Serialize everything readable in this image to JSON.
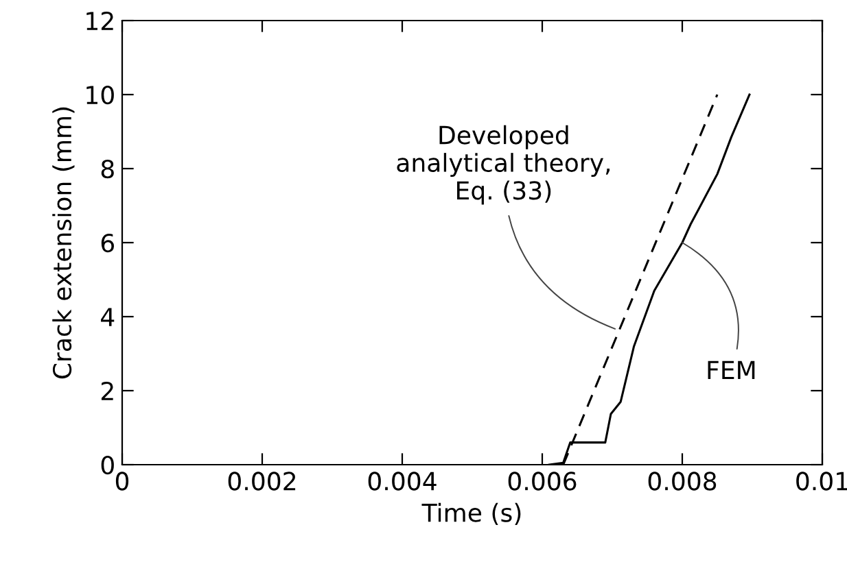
{
  "chart_data": {
    "type": "line",
    "xlabel": "Time (s)",
    "ylabel": "Crack extension (mm)",
    "xlim": [
      0,
      0.01
    ],
    "ylim": [
      0,
      12
    ],
    "xticks": [
      {
        "value": 0,
        "label": "0"
      },
      0.002,
      0.004,
      0.006,
      0.008,
      0.01
    ],
    "yticks": [
      0,
      2,
      4,
      6,
      8,
      10,
      12
    ],
    "grid": false,
    "legend": false,
    "series": [
      {
        "color": "#000000",
        "line_style": "dashed",
        "x": [
          0.0063,
          0.0085
        ],
        "values": [
          0,
          10
        ]
      },
      {
        "color": "#000000",
        "line_style": "solid",
        "x": [
          0.0061,
          0.0063,
          0.0064,
          0.0069,
          0.00698,
          0.00712,
          0.00731,
          0.0076,
          0.008,
          0.00812,
          0.0085,
          0.0087,
          0.00896
        ],
        "values": [
          0,
          0.05,
          0.6,
          0.6,
          1.37,
          1.7,
          3.2,
          4.7,
          6.0,
          6.5,
          7.85,
          8.85,
          10
        ]
      }
    ],
    "annotations": [
      {
        "text": "Developed\nanalytical theory,\nEq. (33)",
        "x": 0.00704,
        "y": 3.67
      },
      {
        "text": "FEM",
        "x": 0.008,
        "y": 6.0
      }
    ]
  }
}
